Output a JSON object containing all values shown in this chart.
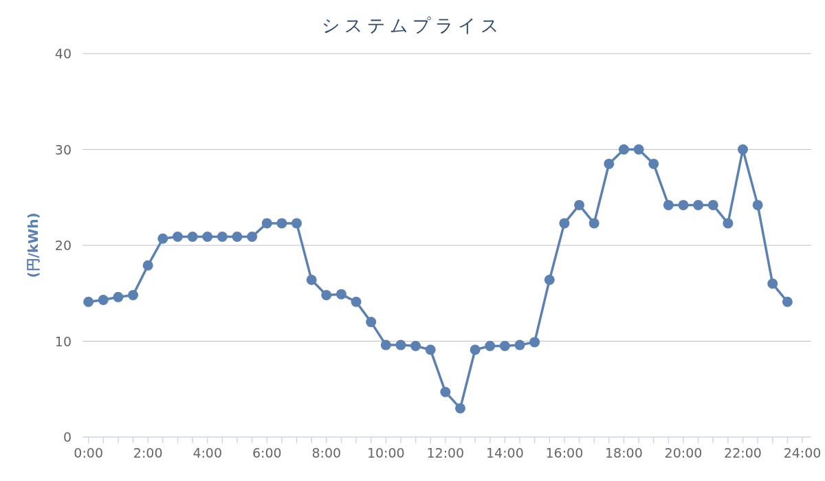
{
  "chart_data": {
    "type": "line",
    "title": "システムプライス",
    "ylabel": "(円/kWh)",
    "x": [
      0,
      0.5,
      1,
      1.5,
      2,
      2.5,
      3,
      3.5,
      4,
      4.5,
      5,
      5.5,
      6,
      6.5,
      7,
      7.5,
      8,
      8.5,
      9,
      9.5,
      10,
      10.5,
      11,
      11.5,
      12,
      12.5,
      13,
      13.5,
      14,
      14.5,
      15,
      15.5,
      16,
      16.5,
      17,
      17.5,
      18,
      18.5,
      19,
      19.5,
      20,
      20.5,
      21,
      21.5,
      22,
      22.5,
      23,
      23.5
    ],
    "series": [
      {
        "color": "#5b80b2",
        "values": [
          14.1,
          14.3,
          14.6,
          14.8,
          17.9,
          20.7,
          20.9,
          20.9,
          20.9,
          20.9,
          20.9,
          20.9,
          22.3,
          22.3,
          22.3,
          16.4,
          14.8,
          14.9,
          14.1,
          12.0,
          9.6,
          9.6,
          9.5,
          9.1,
          4.7,
          3.0,
          9.1,
          9.5,
          9.5,
          9.6,
          9.9,
          16.4,
          22.3,
          24.2,
          22.3,
          28.5,
          30.0,
          30.0,
          28.5,
          24.2,
          24.2,
          24.2,
          24.2,
          22.3,
          30.0,
          24.2,
          16.0,
          14.1
        ]
      }
    ],
    "xlim": [
      -0.2,
      24.3
    ],
    "xticks": [
      {
        "value": 0,
        "label": "0:00"
      },
      {
        "value": 0.5,
        "label": null
      },
      {
        "value": 1,
        "label": null
      },
      {
        "value": 1.5,
        "label": null
      },
      {
        "value": 2,
        "label": "2:00"
      },
      {
        "value": 2.5,
        "label": null
      },
      {
        "value": 3,
        "label": null
      },
      {
        "value": 3.5,
        "label": null
      },
      {
        "value": 4,
        "label": "4:00"
      },
      {
        "value": 4.5,
        "label": null
      },
      {
        "value": 5,
        "label": null
      },
      {
        "value": 5.5,
        "label": null
      },
      {
        "value": 6,
        "label": "6:00"
      },
      {
        "value": 6.5,
        "label": null
      },
      {
        "value": 7,
        "label": null
      },
      {
        "value": 7.5,
        "label": null
      },
      {
        "value": 8,
        "label": "8:00"
      },
      {
        "value": 8.5,
        "label": null
      },
      {
        "value": 9,
        "label": null
      },
      {
        "value": 9.5,
        "label": null
      },
      {
        "value": 10,
        "label": "10:00"
      },
      {
        "value": 10.5,
        "label": null
      },
      {
        "value": 11,
        "label": null
      },
      {
        "value": 11.5,
        "label": null
      },
      {
        "value": 12,
        "label": "12:00"
      },
      {
        "value": 12.5,
        "label": null
      },
      {
        "value": 13,
        "label": null
      },
      {
        "value": 13.5,
        "label": null
      },
      {
        "value": 14,
        "label": "14:00"
      },
      {
        "value": 14.5,
        "label": null
      },
      {
        "value": 15,
        "label": null
      },
      {
        "value": 15.5,
        "label": null
      },
      {
        "value": 16,
        "label": "16:00"
      },
      {
        "value": 16.5,
        "label": null
      },
      {
        "value": 17,
        "label": null
      },
      {
        "value": 17.5,
        "label": null
      },
      {
        "value": 18,
        "label": "18:00"
      },
      {
        "value": 18.5,
        "label": null
      },
      {
        "value": 19,
        "label": null
      },
      {
        "value": 19.5,
        "label": null
      },
      {
        "value": 20,
        "label": "20:00"
      },
      {
        "value": 20.5,
        "label": null
      },
      {
        "value": 21,
        "label": null
      },
      {
        "value": 21.5,
        "label": null
      },
      {
        "value": 22,
        "label": "22:00"
      },
      {
        "value": 22.5,
        "label": null
      },
      {
        "value": 23,
        "label": null
      },
      {
        "value": 23.5,
        "label": null
      },
      {
        "value": 24,
        "label": "24:00"
      }
    ],
    "ylim": [
      0,
      40
    ],
    "yticks": [
      0,
      10,
      20,
      30,
      40
    ],
    "grid": "y",
    "marker": "circle",
    "line_style": "solid"
  }
}
